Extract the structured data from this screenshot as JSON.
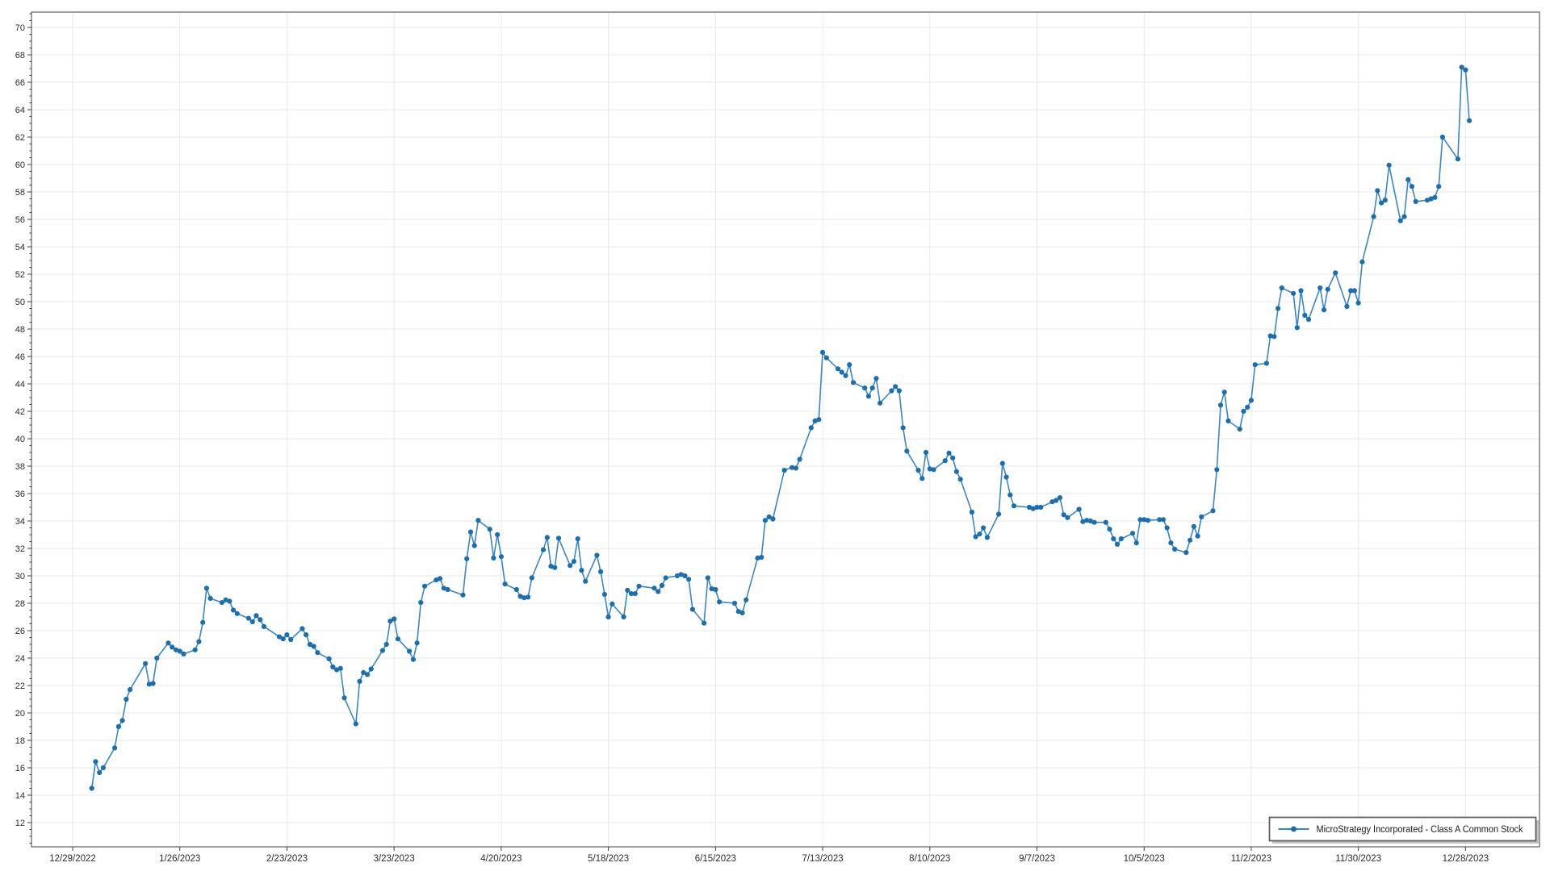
{
  "legend": {
    "label": "MicroStrategy Incorporated - Class A Common Stock"
  },
  "colors": {
    "line": "#3b87c5",
    "marker": "#1b6fae",
    "grid": "#e9e9e9",
    "spine": "#3f3f3f",
    "tick_text": "#2b2b2b",
    "legend_border": "#616161",
    "legend_shadow": "#8f8f8f",
    "legend_text": "#1a1a1a",
    "background": "#ffffff"
  },
  "chart_data": {
    "type": "line",
    "title": "",
    "xlabel": "",
    "ylabel": "",
    "grid": true,
    "legend_position": "bottom-right",
    "ylim": [
      10.2,
      71.2
    ],
    "y_tick_step": 2,
    "y_tick_labels": [
      "12",
      "14",
      "16",
      "18",
      "20",
      "22",
      "24",
      "26",
      "28",
      "30",
      "32",
      "34",
      "36",
      "38",
      "40",
      "42",
      "44",
      "46",
      "48",
      "50",
      "52",
      "54",
      "56",
      "58",
      "60",
      "62",
      "64",
      "66",
      "68",
      "70"
    ],
    "x_tick_labels": [
      "12/29/2022",
      "1/26/2023",
      "2/23/2023",
      "3/23/2023",
      "4/20/2023",
      "5/18/2023",
      "6/15/2023",
      "7/13/2023",
      "8/10/2023",
      "9/7/2023",
      "10/5/2023",
      "11/2/2023",
      "11/30/2023",
      "12/28/2023"
    ],
    "x_tick_dates": [
      "2022-12-29",
      "2023-01-26",
      "2023-02-23",
      "2023-03-23",
      "2023-04-20",
      "2023-05-18",
      "2023-06-15",
      "2023-07-13",
      "2023-08-10",
      "2023-09-07",
      "2023-10-05",
      "2023-11-02",
      "2023-11-30",
      "2023-12-28"
    ],
    "series": [
      {
        "name": "MicroStrategy Incorporated - Class A Common Stock",
        "points": [
          [
            "1/3",
            14.5
          ],
          [
            "1/4",
            16.45
          ],
          [
            "1/5",
            15.65
          ],
          [
            "1/6",
            16.0
          ],
          [
            "1/9",
            17.45
          ],
          [
            "1/10",
            19.0
          ],
          [
            "1/11",
            19.45
          ],
          [
            "1/12",
            21.0
          ],
          [
            "1/13",
            21.7
          ],
          [
            "1/17",
            23.6
          ],
          [
            "1/18",
            22.1
          ],
          [
            "1/19",
            22.15
          ],
          [
            "1/20",
            24.0
          ],
          [
            "1/23",
            25.1
          ],
          [
            "1/24",
            24.8
          ],
          [
            "1/25",
            24.6
          ],
          [
            "1/26",
            24.5
          ],
          [
            "1/27",
            24.3
          ],
          [
            "1/30",
            24.6
          ],
          [
            "1/31",
            25.2
          ],
          [
            "2/1",
            26.6
          ],
          [
            "2/2",
            29.1
          ],
          [
            "2/3",
            28.35
          ],
          [
            "2/6",
            28.05
          ],
          [
            "2/7",
            28.25
          ],
          [
            "2/8",
            28.15
          ],
          [
            "2/9",
            27.5
          ],
          [
            "2/10",
            27.25
          ],
          [
            "2/13",
            26.9
          ],
          [
            "2/14",
            26.65
          ],
          [
            "2/15",
            27.1
          ],
          [
            "2/16",
            26.8
          ],
          [
            "2/17",
            26.3
          ],
          [
            "2/21",
            25.55
          ],
          [
            "2/22",
            25.4
          ],
          [
            "2/23",
            25.7
          ],
          [
            "2/24",
            25.35
          ],
          [
            "2/27",
            26.15
          ],
          [
            "2/28",
            25.7
          ],
          [
            "3/1",
            25.0
          ],
          [
            "3/2",
            24.85
          ],
          [
            "3/3",
            24.4
          ],
          [
            "3/6",
            23.95
          ],
          [
            "3/7",
            23.35
          ],
          [
            "3/8",
            23.15
          ],
          [
            "3/9",
            23.25
          ],
          [
            "3/10",
            21.1
          ],
          [
            "3/13",
            19.2
          ],
          [
            "3/14",
            22.3
          ],
          [
            "3/15",
            22.95
          ],
          [
            "3/16",
            22.8
          ],
          [
            "3/17",
            23.2
          ],
          [
            "3/20",
            24.55
          ],
          [
            "3/21",
            25.0
          ],
          [
            "3/22",
            26.7
          ],
          [
            "3/23",
            26.85
          ],
          [
            "3/24",
            25.4
          ],
          [
            "3/27",
            24.5
          ],
          [
            "3/28",
            23.9
          ],
          [
            "3/29",
            25.1
          ],
          [
            "3/30",
            28.05
          ],
          [
            "3/31",
            29.25
          ],
          [
            "4/3",
            29.7
          ],
          [
            "4/4",
            29.8
          ],
          [
            "4/5",
            29.1
          ],
          [
            "4/6",
            29.0
          ],
          [
            "4/10",
            28.6
          ],
          [
            "4/11",
            31.25
          ],
          [
            "4/12",
            33.2
          ],
          [
            "4/13",
            32.2
          ],
          [
            "4/14",
            34.05
          ],
          [
            "4/17",
            33.4
          ],
          [
            "4/18",
            31.3
          ],
          [
            "4/19",
            33.0
          ],
          [
            "4/20",
            31.4
          ],
          [
            "4/21",
            29.4
          ],
          [
            "4/24",
            29.0
          ],
          [
            "4/25",
            28.5
          ],
          [
            "4/26",
            28.4
          ],
          [
            "4/27",
            28.45
          ],
          [
            "4/28",
            29.85
          ],
          [
            "5/1",
            31.9
          ],
          [
            "5/2",
            32.8
          ],
          [
            "5/3",
            30.7
          ],
          [
            "5/4",
            30.6
          ],
          [
            "5/5",
            32.75
          ],
          [
            "5/8",
            30.75
          ],
          [
            "5/9",
            31.05
          ],
          [
            "5/10",
            32.7
          ],
          [
            "5/11",
            30.4
          ],
          [
            "5/12",
            29.6
          ],
          [
            "5/15",
            31.5
          ],
          [
            "5/16",
            30.3
          ],
          [
            "5/17",
            28.65
          ],
          [
            "5/18",
            27.0
          ],
          [
            "5/19",
            27.95
          ],
          [
            "5/22",
            27.0
          ],
          [
            "5/23",
            28.95
          ],
          [
            "5/24",
            28.7
          ],
          [
            "5/25",
            28.7
          ],
          [
            "5/26",
            29.25
          ],
          [
            "5/30",
            29.1
          ],
          [
            "5/31",
            28.85
          ],
          [
            "6/1",
            29.3
          ],
          [
            "6/2",
            29.85
          ],
          [
            "6/5",
            30.0
          ],
          [
            "6/6",
            30.1
          ],
          [
            "6/7",
            30.0
          ],
          [
            "6/8",
            29.75
          ],
          [
            "6/9",
            27.55
          ],
          [
            "6/12",
            26.55
          ],
          [
            "6/13",
            29.85
          ],
          [
            "6/14",
            29.05
          ],
          [
            "6/15",
            29.0
          ],
          [
            "6/16",
            28.1
          ],
          [
            "6/20",
            28.0
          ],
          [
            "6/21",
            27.4
          ],
          [
            "6/22",
            27.3
          ],
          [
            "6/23",
            28.25
          ],
          [
            "6/26",
            31.3
          ],
          [
            "6/27",
            31.35
          ],
          [
            "6/28",
            34.05
          ],
          [
            "6/29",
            34.3
          ],
          [
            "6/30",
            34.15
          ],
          [
            "7/3",
            37.7
          ],
          [
            "7/5",
            37.9
          ],
          [
            "7/6",
            37.85
          ],
          [
            "7/7",
            38.5
          ],
          [
            "7/10",
            40.8
          ],
          [
            "7/11",
            41.3
          ],
          [
            "7/12",
            41.4
          ],
          [
            "7/13",
            46.3
          ],
          [
            "7/14",
            45.9
          ],
          [
            "7/17",
            45.1
          ],
          [
            "7/18",
            44.85
          ],
          [
            "7/19",
            44.6
          ],
          [
            "7/20",
            45.4
          ],
          [
            "7/21",
            44.1
          ],
          [
            "7/24",
            43.7
          ],
          [
            "7/25",
            43.1
          ],
          [
            "7/26",
            43.7
          ],
          [
            "7/27",
            44.4
          ],
          [
            "7/28",
            42.6
          ],
          [
            "7/31",
            43.5
          ],
          [
            "8/1",
            43.8
          ],
          [
            "8/2",
            43.5
          ],
          [
            "8/3",
            40.8
          ],
          [
            "8/4",
            39.1
          ],
          [
            "8/7",
            37.7
          ],
          [
            "8/8",
            37.1
          ],
          [
            "8/9",
            39.0
          ],
          [
            "8/10",
            37.8
          ],
          [
            "8/11",
            37.75
          ],
          [
            "8/14",
            38.4
          ],
          [
            "8/15",
            38.95
          ],
          [
            "8/16",
            38.6
          ],
          [
            "8/17",
            37.6
          ],
          [
            "8/18",
            37.05
          ],
          [
            "8/21",
            34.65
          ],
          [
            "8/22",
            32.85
          ],
          [
            "8/23",
            33.05
          ],
          [
            "8/24",
            33.5
          ],
          [
            "8/25",
            32.8
          ],
          [
            "8/28",
            34.5
          ],
          [
            "8/29",
            38.2
          ],
          [
            "8/30",
            37.2
          ],
          [
            "8/31",
            35.9
          ],
          [
            "9/1",
            35.1
          ],
          [
            "9/5",
            35.0
          ],
          [
            "9/6",
            34.9
          ],
          [
            "9/7",
            35.0
          ],
          [
            "9/8",
            35.0
          ],
          [
            "9/11",
            35.4
          ],
          [
            "9/12",
            35.5
          ],
          [
            "9/13",
            35.7
          ],
          [
            "9/14",
            34.45
          ],
          [
            "9/15",
            34.25
          ],
          [
            "9/18",
            34.85
          ],
          [
            "9/19",
            33.95
          ],
          [
            "9/20",
            34.05
          ],
          [
            "9/21",
            34.0
          ],
          [
            "9/22",
            33.9
          ],
          [
            "9/25",
            33.9
          ],
          [
            "9/26",
            33.4
          ],
          [
            "9/27",
            32.7
          ],
          [
            "9/28",
            32.3
          ],
          [
            "9/29",
            32.7
          ],
          [
            "10/2",
            33.1
          ],
          [
            "10/3",
            32.4
          ],
          [
            "10/4",
            34.1
          ],
          [
            "10/5",
            34.1
          ],
          [
            "10/6",
            34.05
          ],
          [
            "10/9",
            34.1
          ],
          [
            "10/10",
            34.1
          ],
          [
            "10/11",
            33.5
          ],
          [
            "10/12",
            32.4
          ],
          [
            "10/13",
            31.95
          ],
          [
            "10/16",
            31.7
          ],
          [
            "10/17",
            32.6
          ],
          [
            "10/18",
            33.6
          ],
          [
            "10/19",
            32.9
          ],
          [
            "10/20",
            34.3
          ],
          [
            "10/23",
            34.75
          ],
          [
            "10/24",
            37.75
          ],
          [
            "10/25",
            42.45
          ],
          [
            "10/26",
            43.4
          ],
          [
            "10/27",
            41.3
          ],
          [
            "10/30",
            40.7
          ],
          [
            "10/31",
            42.0
          ],
          [
            "11/1",
            42.3
          ],
          [
            "11/2",
            42.8
          ],
          [
            "11/3",
            45.4
          ],
          [
            "11/6",
            45.5
          ],
          [
            "11/7",
            47.5
          ],
          [
            "11/8",
            47.45
          ],
          [
            "11/9",
            49.5
          ],
          [
            "11/10",
            51.0
          ],
          [
            "11/13",
            50.6
          ],
          [
            "11/14",
            48.1
          ],
          [
            "11/15",
            50.8
          ],
          [
            "11/16",
            49.0
          ],
          [
            "11/17",
            48.7
          ],
          [
            "11/20",
            51.0
          ],
          [
            "11/21",
            49.4
          ],
          [
            "11/22",
            50.9
          ],
          [
            "11/24",
            52.1
          ],
          [
            "11/27",
            49.65
          ],
          [
            "11/28",
            50.8
          ],
          [
            "11/29",
            50.8
          ],
          [
            "11/30",
            49.9
          ],
          [
            "12/1",
            52.9
          ],
          [
            "12/4",
            56.2
          ],
          [
            "12/5",
            58.1
          ],
          [
            "12/6",
            57.2
          ],
          [
            "12/7",
            57.4
          ],
          [
            "12/8",
            59.95
          ],
          [
            "12/11",
            55.9
          ],
          [
            "12/12",
            56.2
          ],
          [
            "12/13",
            58.9
          ],
          [
            "12/14",
            58.4
          ],
          [
            "12/15",
            57.3
          ],
          [
            "12/18",
            57.4
          ],
          [
            "12/19",
            57.5
          ],
          [
            "12/20",
            57.6
          ],
          [
            "12/21",
            58.4
          ],
          [
            "12/22",
            62.0
          ],
          [
            "12/26",
            60.4
          ],
          [
            "12/27",
            67.1
          ],
          [
            "12/28",
            66.9
          ],
          [
            "12/29",
            63.2
          ]
        ]
      }
    ]
  }
}
